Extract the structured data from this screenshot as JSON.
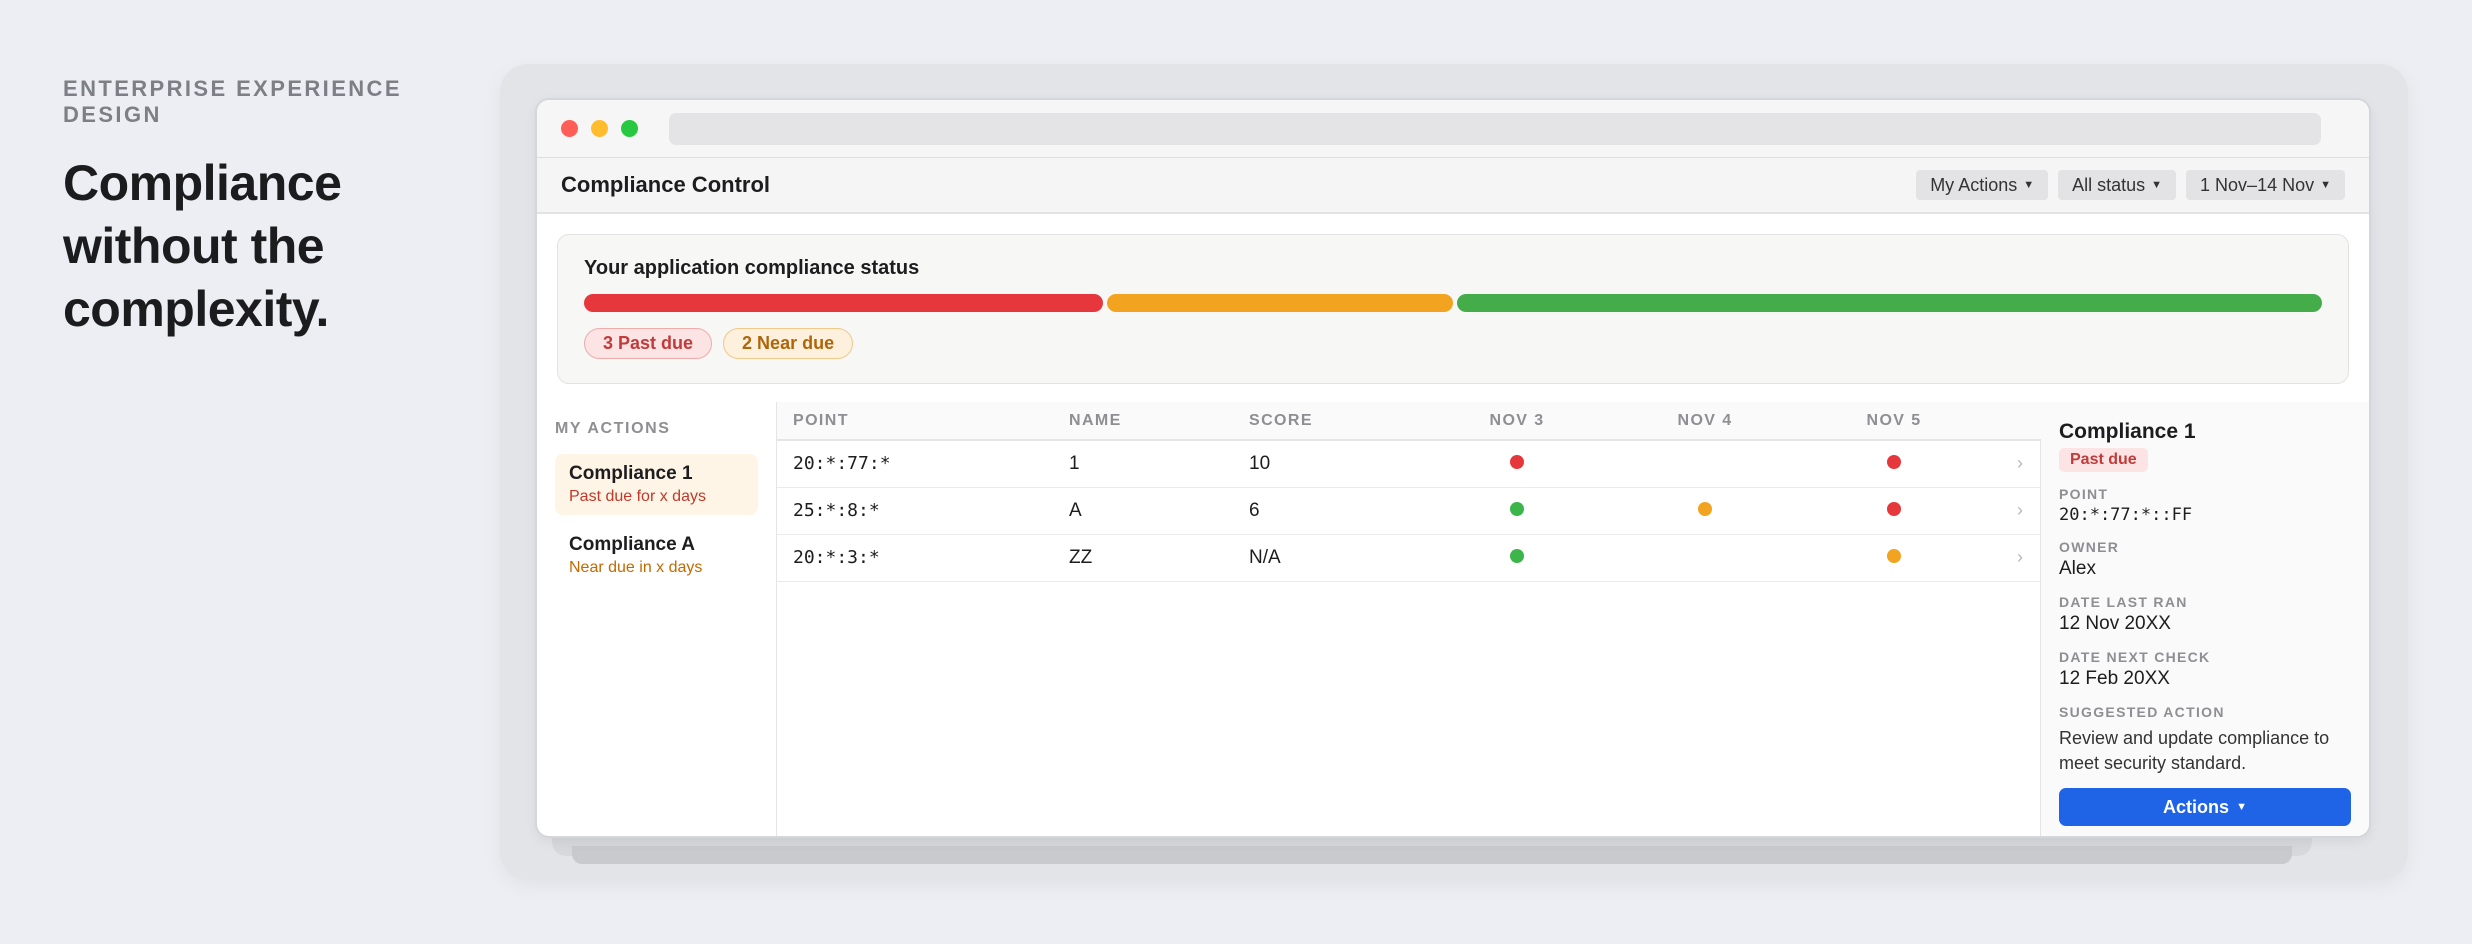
{
  "hero": {
    "eyebrow": "ENTERPRISE EXPERIENCE DESIGN",
    "headline": "Compliance without the complexity."
  },
  "app": {
    "title": "Compliance Control",
    "filters": [
      "My Actions",
      "All status",
      "1 Nov–14 Nov"
    ]
  },
  "status": {
    "title": "Your application compliance status",
    "segments": [
      {
        "color": "#e5373c",
        "weight": 3
      },
      {
        "color": "#f2a31f",
        "weight": 2
      },
      {
        "color": "#44ad4a",
        "weight": 5
      }
    ],
    "badges": [
      "3 Past due",
      "2 Near due"
    ]
  },
  "sidebar": {
    "title": "MY ACTIONS",
    "items": [
      {
        "name": "Compliance 1",
        "sub": "Past due for x days"
      },
      {
        "name": "Compliance A",
        "sub": "Near due in x days"
      }
    ]
  },
  "table": {
    "headers": [
      "POINT",
      "NAME",
      "SCORE",
      "NOV 3",
      "NOV 4",
      "NOV 5"
    ],
    "rows": [
      {
        "point": "20:*:77:*",
        "name": "1",
        "score": "10",
        "days": [
          "red",
          "",
          "red"
        ]
      },
      {
        "point": "25:*:8:*",
        "name": "A",
        "score": "6",
        "days": [
          "green",
          "orange",
          "red"
        ]
      },
      {
        "point": "20:*:3:*",
        "name": "ZZ",
        "score": "N/A",
        "days": [
          "green",
          "",
          "orange"
        ]
      }
    ],
    "chevron": "›"
  },
  "status_colors": {
    "red": "#e5373c",
    "orange": "#f2a31f",
    "green": "#3cb54a"
  },
  "details": {
    "title": "Compliance 1",
    "badge": "Past due",
    "fields": [
      {
        "label": "POINT",
        "value": "20:*:77:*::FF"
      },
      {
        "label": "OWNER",
        "value": "Alex"
      },
      {
        "label": "DATE LAST RAN",
        "value": "12 Nov 20XX"
      },
      {
        "label": "DATE NEXT CHECK",
        "value": "12 Feb 20XX"
      }
    ],
    "suggested_label": "SUGGESTED ACTION",
    "suggested_text": "Review and update compliance to meet security standard.",
    "button": "Actions"
  }
}
